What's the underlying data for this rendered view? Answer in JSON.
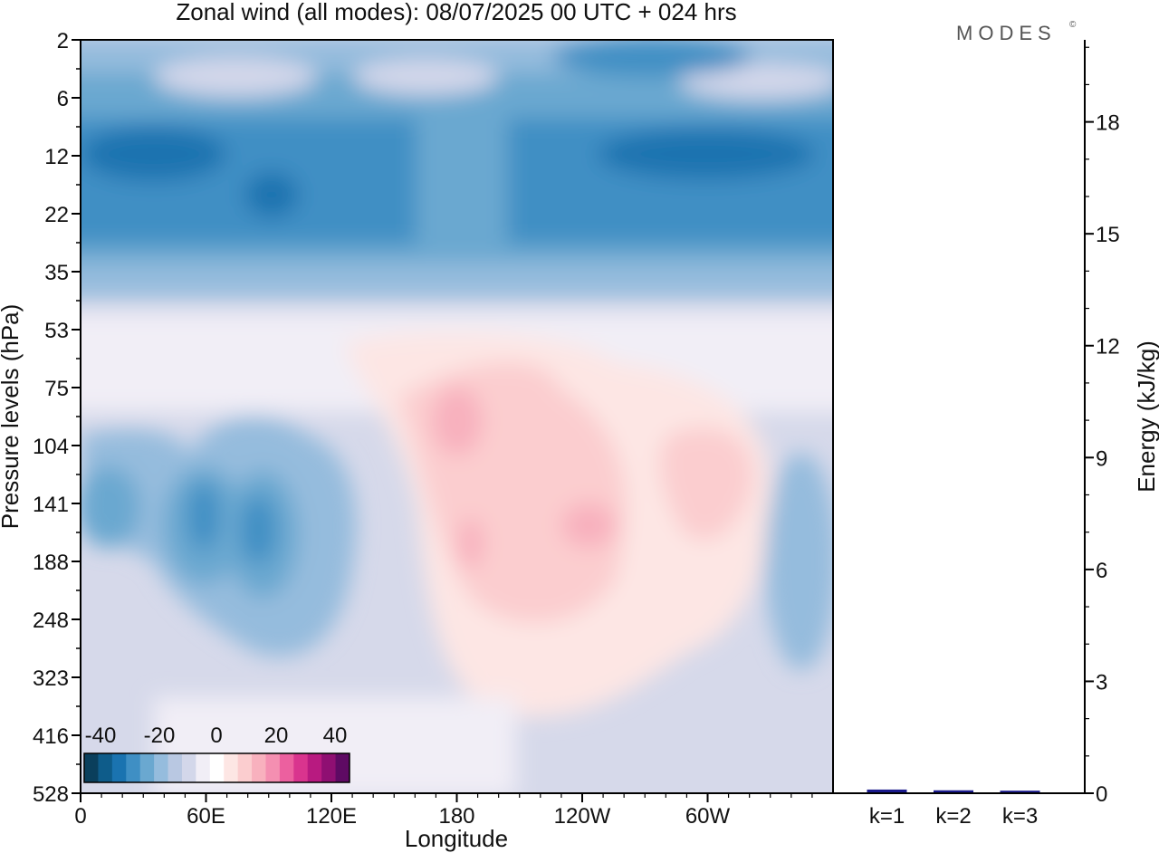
{
  "logo": "MODES",
  "logo_mark": "©",
  "chart_data": [
    {
      "type": "heatmap",
      "title": "Zonal wind (all modes):  08/07/2025  00 UTC  + 024 hrs",
      "xlabel": "Longitude",
      "ylabel": "Pressure levels (hPa)",
      "x_ticks": [
        "0",
        "60E",
        "120E",
        "180",
        "120W",
        "60W"
      ],
      "x_tick_degrees": [
        0,
        60,
        120,
        180,
        240,
        300
      ],
      "xlim": [
        0,
        360
      ],
      "y_ticks": [
        "2",
        "6",
        "12",
        "22",
        "35",
        "53",
        "75",
        "104",
        "141",
        "188",
        "248",
        "323",
        "416",
        "528"
      ],
      "y_levels": [
        2,
        6,
        12,
        22,
        35,
        53,
        75,
        104,
        141,
        188,
        248,
        323,
        416,
        528
      ],
      "colorbar": {
        "tick_labels": [
          "-40",
          "-20",
          "0",
          "20",
          "40"
        ],
        "colors": [
          "#0a3f5c",
          "#0e5c8a",
          "#1a73b0",
          "#3f8fc4",
          "#6aa8d0",
          "#95bcdd",
          "#b9c8e2",
          "#d3d7ea",
          "#f1eef6",
          "#ffffff",
          "#fde6e4",
          "#fbcdcf",
          "#f8b1be",
          "#f48fb1",
          "#ec609f",
          "#d9348e",
          "#b81a80",
          "#8f0f72",
          "#5e0a63"
        ]
      },
      "field_description": [
        {
          "region": "upper stratosphere (2-6 hPa)",
          "wind": "weak easterly, -10 to -25 m/s"
        },
        {
          "region": "middle stratosphere (8-30 hPa)",
          "wind": "easterly jet, -25 to -40 m/s"
        },
        {
          "region": "lower stratosphere (53-104 hPa)",
          "wind": "near zero, weak westerly 0-10 m/s from 150E to 60W"
        },
        {
          "region": "upper troposphere 40E-100E (104-248 hPa)",
          "wind": "easterly -15 to -30 m/s"
        },
        {
          "region": "upper troposphere 160E-50W (104-248 hPa)",
          "wind": "westerly 5-15 m/s"
        },
        {
          "region": "lower levels (248-528 hPa)",
          "wind": "weak easterly -5 to 0 m/s"
        }
      ]
    },
    {
      "type": "bar",
      "categories": [
        "k=1",
        "k=2",
        "k=3"
      ],
      "values": [
        0.05,
        0.03,
        0.02
      ],
      "ylabel": "Energy (kJ/kg)",
      "ylim": [
        0,
        20.2
      ],
      "y_ticks": [
        "0",
        "3",
        "6",
        "9",
        "12",
        "15",
        "18"
      ],
      "y_tick_values": [
        0,
        3,
        6,
        9,
        12,
        15,
        18
      ],
      "bar_color": "#1a1a8c"
    }
  ]
}
